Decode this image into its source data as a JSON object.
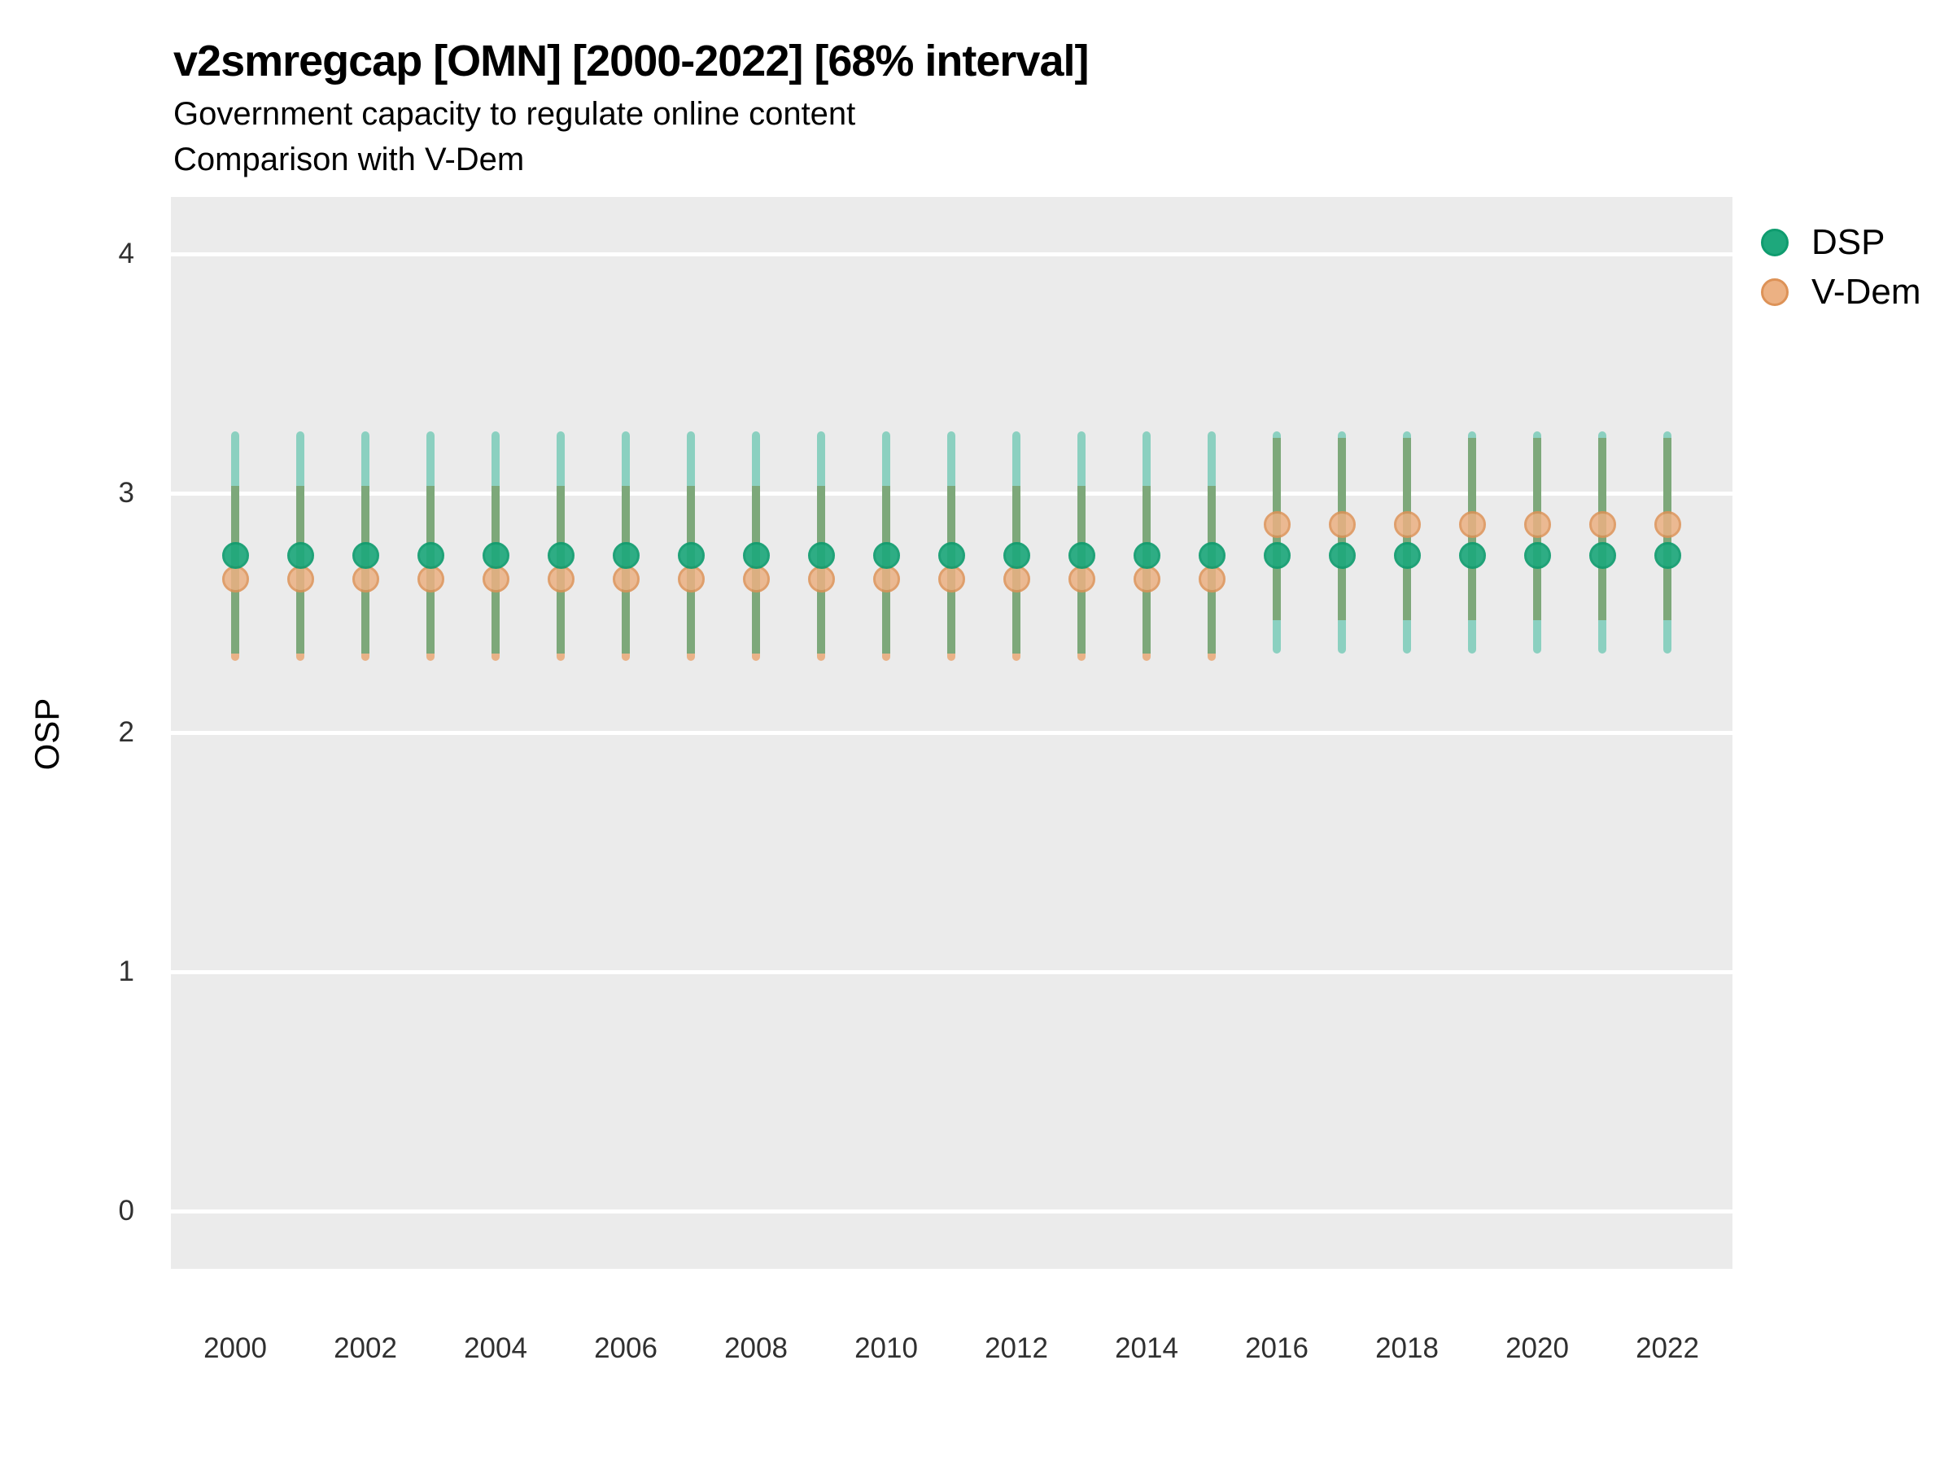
{
  "header": {
    "title": "v2smregcap [OMN] [2000-2022] [68% interval]",
    "subtitle1": "Government capacity to regulate online content",
    "subtitle2": "Comparison with V-Dem"
  },
  "axes": {
    "ylabel": "OSP",
    "yticks": [
      4,
      3,
      2,
      1,
      0
    ],
    "xticks": [
      2000,
      2002,
      2004,
      2006,
      2008,
      2010,
      2012,
      2014,
      2016,
      2018,
      2020,
      2022
    ]
  },
  "legend": {
    "position": "right",
    "items": [
      {
        "label": "DSP"
      },
      {
        "label": "V-Dem"
      }
    ]
  },
  "colors": {
    "panel_background": "#ebebeb",
    "gridline": "#ffffff",
    "dsp_point_fill": "#1ea87c",
    "dsp_point_stroke": "#0f9c6f",
    "vdem_point_fill": "#ecb183",
    "vdem_point_stroke": "#dd9257",
    "dsp_interval_bar": "#8bd0c0",
    "vdem_interval_bar": "#e9b287",
    "overlap_interval_bar": "#7da87a",
    "text": "#000000",
    "tick_text": "#303030"
  },
  "chart_data": {
    "type": "scatter",
    "title": "v2smregcap [OMN] [2000-2022] [68% interval]",
    "subtitle": [
      "Government capacity to regulate online content",
      "Comparison with V-Dem"
    ],
    "xlabel": "",
    "ylabel": "OSP",
    "ylim": [
      -0.25,
      4.25
    ],
    "yticks": [
      0,
      1,
      2,
      3,
      4
    ],
    "grid": "major-horizontal-white-on-gray",
    "legend_position": "right",
    "interval_note": "68% credible interval shown as vertical bars; overlap of DSP and V-Dem bars renders olive",
    "x": [
      2000,
      2001,
      2002,
      2003,
      2004,
      2005,
      2006,
      2007,
      2008,
      2009,
      2010,
      2011,
      2012,
      2013,
      2014,
      2015,
      2016,
      2017,
      2018,
      2019,
      2020,
      2021,
      2022
    ],
    "series": [
      {
        "name": "DSP",
        "estimate": [
          2.74,
          2.74,
          2.74,
          2.74,
          2.74,
          2.74,
          2.74,
          2.74,
          2.74,
          2.74,
          2.74,
          2.74,
          2.74,
          2.74,
          2.74,
          2.74,
          2.74,
          2.74,
          2.74,
          2.74,
          2.74,
          2.74,
          2.74
        ],
        "lo": [
          2.33,
          2.33,
          2.33,
          2.33,
          2.33,
          2.33,
          2.33,
          2.33,
          2.33,
          2.33,
          2.33,
          2.33,
          2.33,
          2.33,
          2.33,
          2.33,
          2.33,
          2.33,
          2.33,
          2.33,
          2.33,
          2.33,
          2.33
        ],
        "hi": [
          3.26,
          3.26,
          3.26,
          3.26,
          3.26,
          3.26,
          3.26,
          3.26,
          3.26,
          3.26,
          3.26,
          3.26,
          3.26,
          3.26,
          3.26,
          3.26,
          3.26,
          3.26,
          3.26,
          3.26,
          3.26,
          3.26,
          3.26
        ]
      },
      {
        "name": "V-Dem",
        "estimate": [
          2.64,
          2.64,
          2.64,
          2.64,
          2.64,
          2.64,
          2.64,
          2.64,
          2.64,
          2.64,
          2.64,
          2.64,
          2.64,
          2.64,
          2.64,
          2.64,
          2.87,
          2.87,
          2.87,
          2.87,
          2.87,
          2.87,
          2.87
        ],
        "lo": [
          2.3,
          2.3,
          2.3,
          2.3,
          2.3,
          2.3,
          2.3,
          2.3,
          2.3,
          2.3,
          2.3,
          2.3,
          2.3,
          2.3,
          2.3,
          2.3,
          2.47,
          2.47,
          2.47,
          2.47,
          2.47,
          2.47,
          2.47
        ],
        "hi": [
          3.03,
          3.03,
          3.03,
          3.03,
          3.03,
          3.03,
          3.03,
          3.03,
          3.03,
          3.03,
          3.03,
          3.03,
          3.03,
          3.03,
          3.03,
          3.03,
          3.23,
          3.23,
          3.23,
          3.23,
          3.23,
          3.23,
          3.23
        ]
      }
    ]
  }
}
